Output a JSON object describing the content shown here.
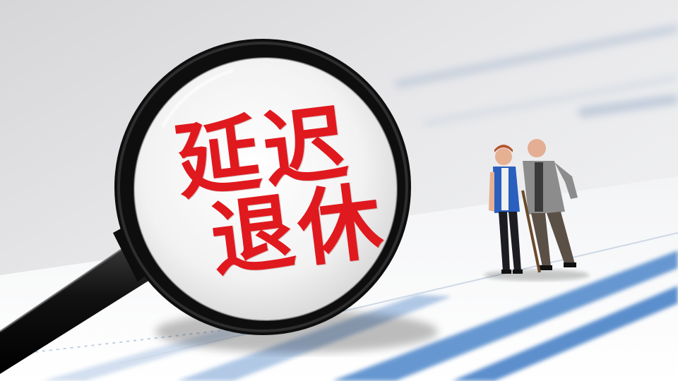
{
  "lens": {
    "line1": "延迟",
    "line2": "退休"
  },
  "colors": {
    "text": "#e0191e",
    "lens_rim": "#111111",
    "paper_stripe": "#3f7bc4"
  },
  "icons": [
    "magnifying-glass-icon",
    "elderly-couple-figurines"
  ]
}
